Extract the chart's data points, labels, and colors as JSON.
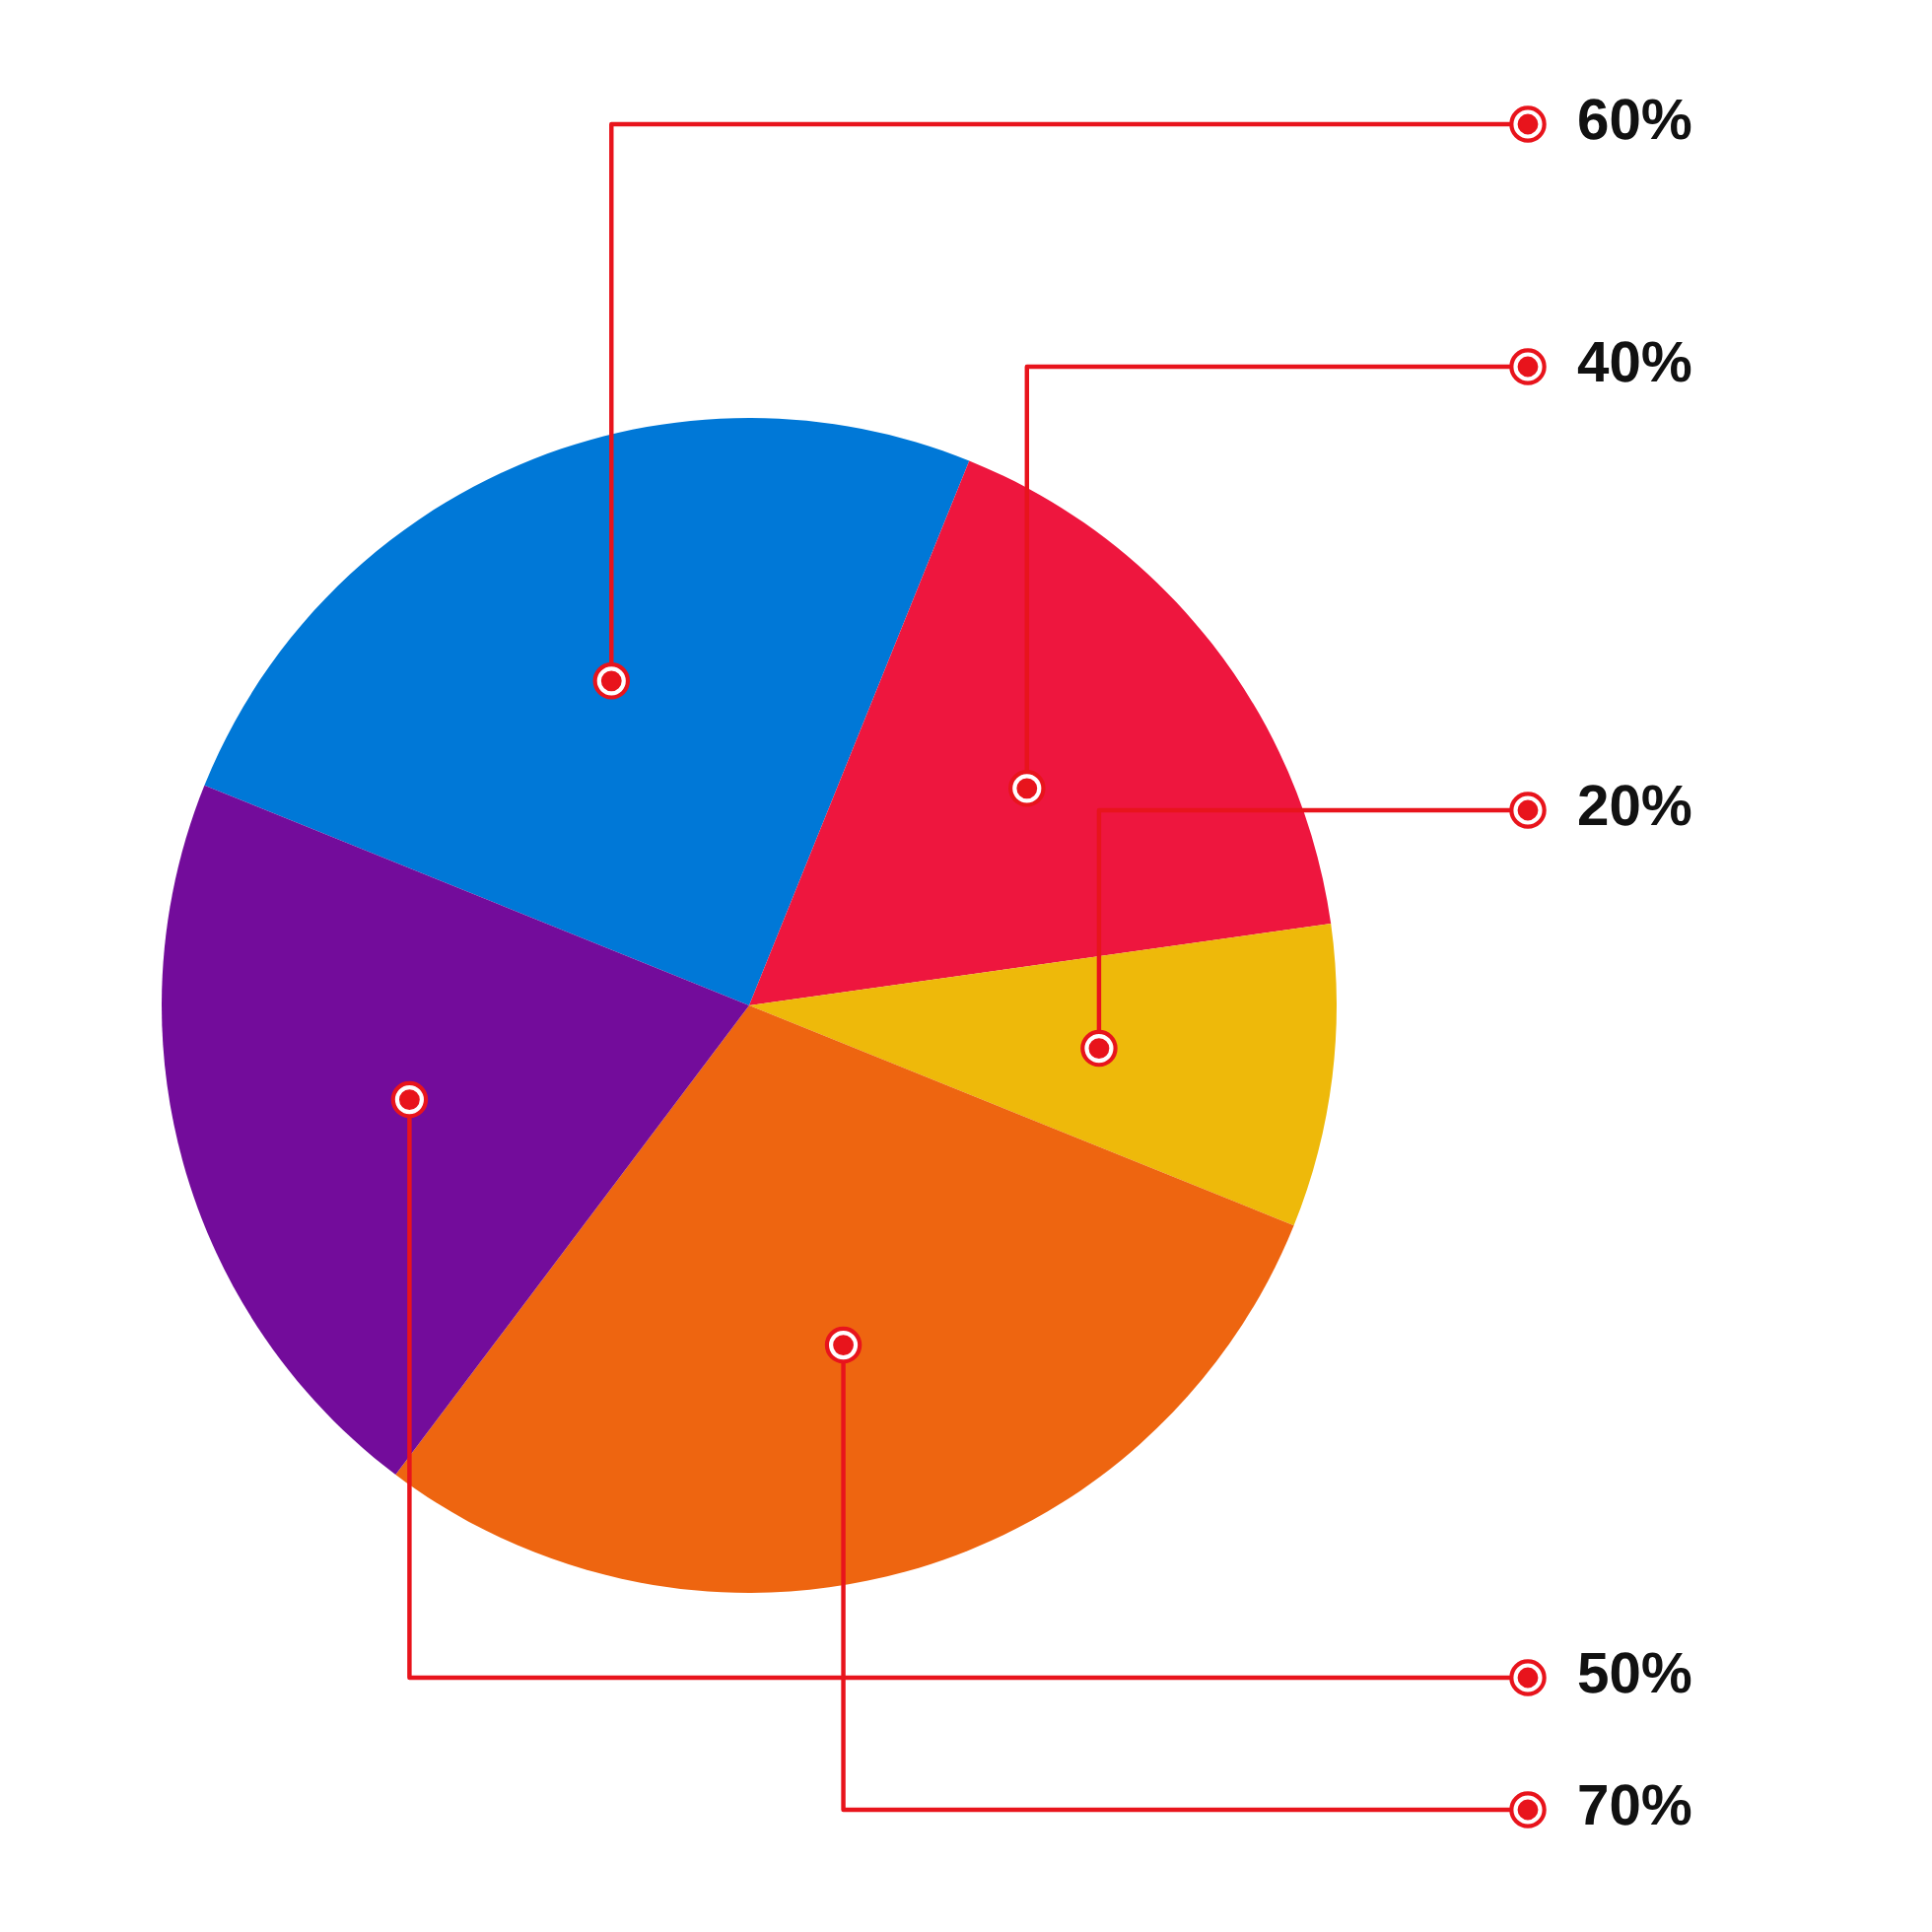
{
  "chart_data": {
    "type": "pie",
    "categories": [
      null,
      null,
      null,
      null,
      null
    ],
    "values": [
      60,
      40,
      20,
      70,
      50
    ],
    "value_labels": [
      "60%",
      "40%",
      "20%",
      "70%",
      "50%"
    ],
    "colors": [
      "#0078d7",
      "#ee163e",
      "#eeb90a",
      "#ee6510",
      "#730c9b"
    ]
  }
}
